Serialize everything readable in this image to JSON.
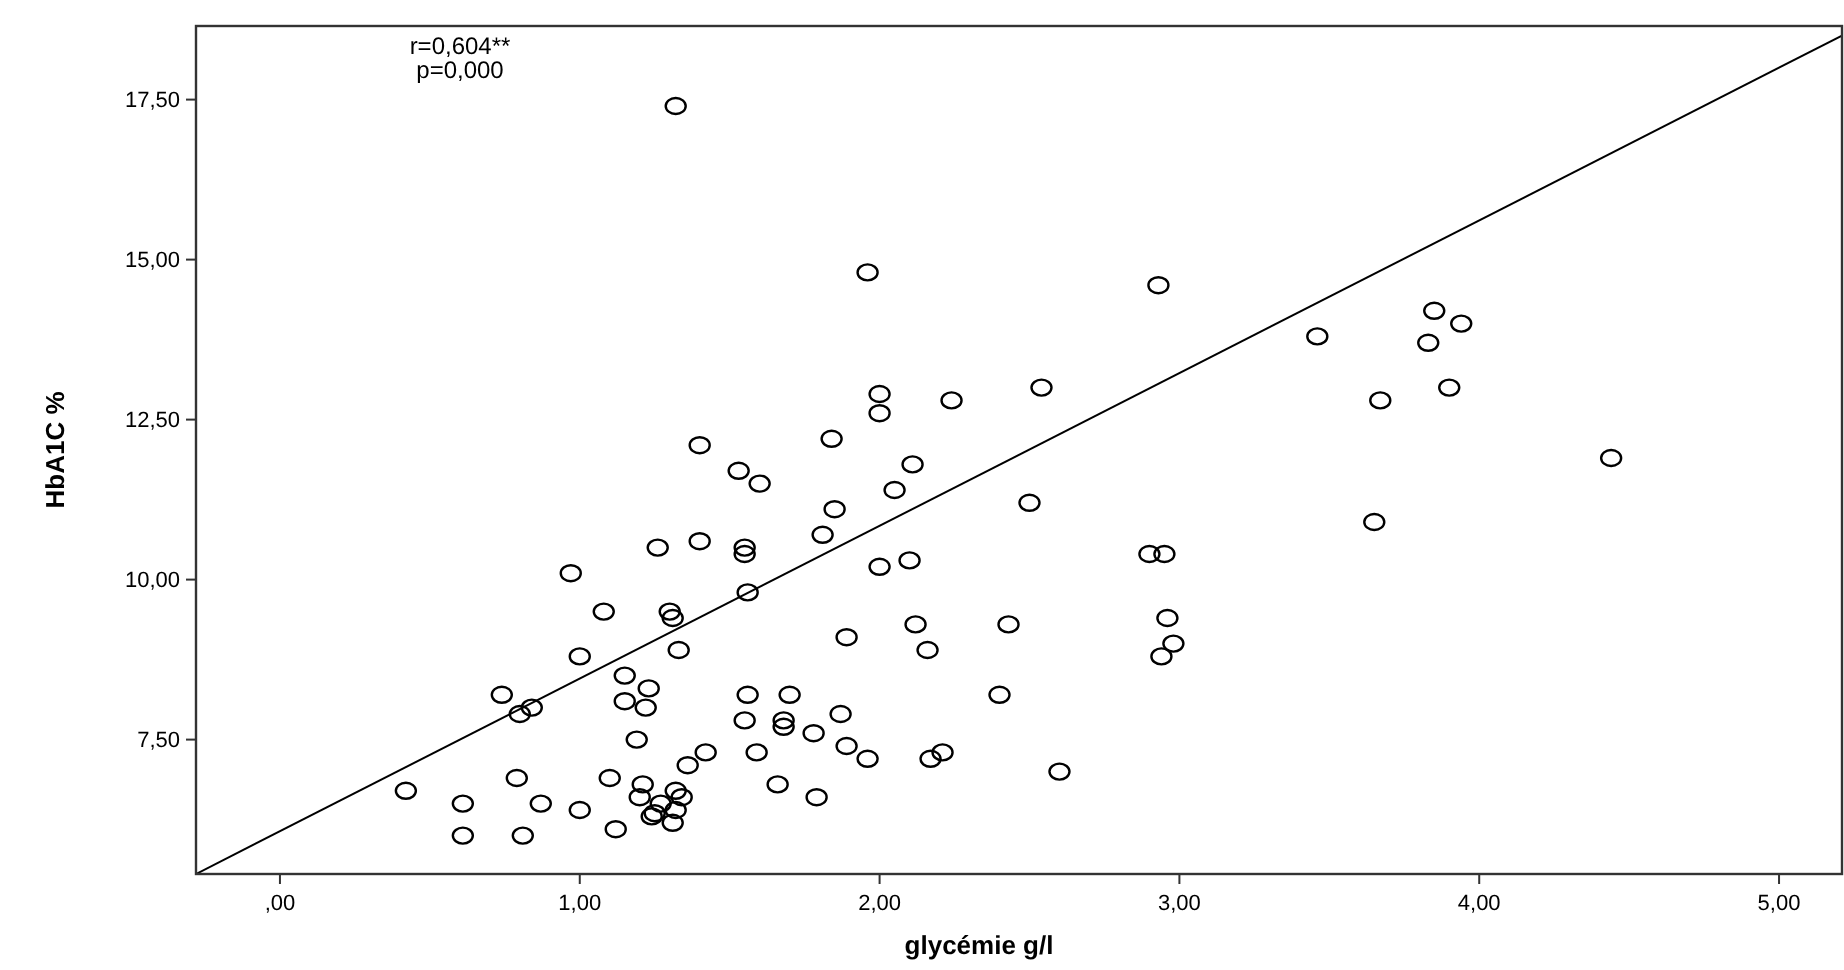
{
  "chart_data": {
    "type": "scatter",
    "xlabel": "glycémie g/l",
    "ylabel": "HbA1C %",
    "annotations": [
      "r=0,604**",
      "p=0,000"
    ],
    "xlim": [
      -0.28,
      5.21
    ],
    "ylim": [
      5.4,
      18.65
    ],
    "xticks": [
      {
        "value": 0,
        "label": ",00"
      },
      {
        "value": 1,
        "label": "1,00"
      },
      {
        "value": 2,
        "label": "2,00"
      },
      {
        "value": 3,
        "label": "3,00"
      },
      {
        "value": 4,
        "label": "4,00"
      },
      {
        "value": 5,
        "label": "5,00"
      }
    ],
    "yticks": [
      {
        "value": 7.5,
        "label": "7,50"
      },
      {
        "value": 10,
        "label": "10,00"
      },
      {
        "value": 12.5,
        "label": "12,50"
      },
      {
        "value": 15,
        "label": "15,00"
      },
      {
        "value": 17.5,
        "label": "17,50"
      }
    ],
    "marker": "circle",
    "series": [
      {
        "color": "#000000",
        "x": [
          0.42,
          0.61,
          0.61,
          0.74,
          0.8,
          0.84,
          0.79,
          0.81,
          0.87,
          0.97,
          1.0,
          1.0,
          1.08,
          1.1,
          1.12,
          1.15,
          1.15,
          1.19,
          1.21,
          1.2,
          1.22,
          1.23,
          1.24,
          1.25,
          1.27,
          1.26,
          1.3,
          1.31,
          1.32,
          1.34,
          1.32,
          1.31,
          1.33,
          1.36,
          1.42,
          1.4,
          1.4,
          1.53,
          1.55,
          1.55,
          1.56,
          1.56,
          1.55,
          1.59,
          1.6,
          1.66,
          1.68,
          1.68,
          1.7,
          1.78,
          1.79,
          1.81,
          1.84,
          1.85,
          1.87,
          1.89,
          1.89,
          1.96,
          2.0,
          2.0,
          2.0,
          2.05,
          2.1,
          2.11,
          2.12,
          2.16,
          2.17,
          2.21,
          2.24,
          2.4,
          2.43,
          2.5,
          2.54,
          2.6,
          2.9,
          2.95,
          2.96,
          2.98,
          2.94,
          3.46,
          3.85,
          3.94,
          3.83,
          3.9,
          3.67,
          4.44,
          3.65,
          1.96,
          1.32,
          2.93
        ],
        "values": [
          6.7,
          6.5,
          6.0,
          8.2,
          7.9,
          8.0,
          6.9,
          6.0,
          6.5,
          10.1,
          8.8,
          6.4,
          9.5,
          6.9,
          6.1,
          8.5,
          8.1,
          7.5,
          6.8,
          6.6,
          8.0,
          8.3,
          6.3,
          6.35,
          6.5,
          10.5,
          9.5,
          9.4,
          6.7,
          6.6,
          6.4,
          6.2,
          8.9,
          7.1,
          7.3,
          10.6,
          12.1,
          11.7,
          10.5,
          10.4,
          9.8,
          8.2,
          7.8,
          7.3,
          11.5,
          6.8,
          7.8,
          7.7,
          8.2,
          7.6,
          6.6,
          10.7,
          12.2,
          11.1,
          7.9,
          9.1,
          7.4,
          7.2,
          10.2,
          12.9,
          12.6,
          11.4,
          10.3,
          11.8,
          9.3,
          8.9,
          7.2,
          7.3,
          12.8,
          8.2,
          9.3,
          11.2,
          13.0,
          7.0,
          10.4,
          10.4,
          9.4,
          9.0,
          8.8,
          13.8,
          14.2,
          14.0,
          13.7,
          13.0,
          12.8,
          11.9,
          10.9,
          14.8,
          17.4,
          14.6
        ]
      },
      {
        "type": "line",
        "color": "#000000",
        "x": [
          -0.28,
          5.21
        ],
        "values": [
          5.4,
          18.5
        ],
        "marker": "none",
        "line_style": "solid"
      }
    ]
  }
}
